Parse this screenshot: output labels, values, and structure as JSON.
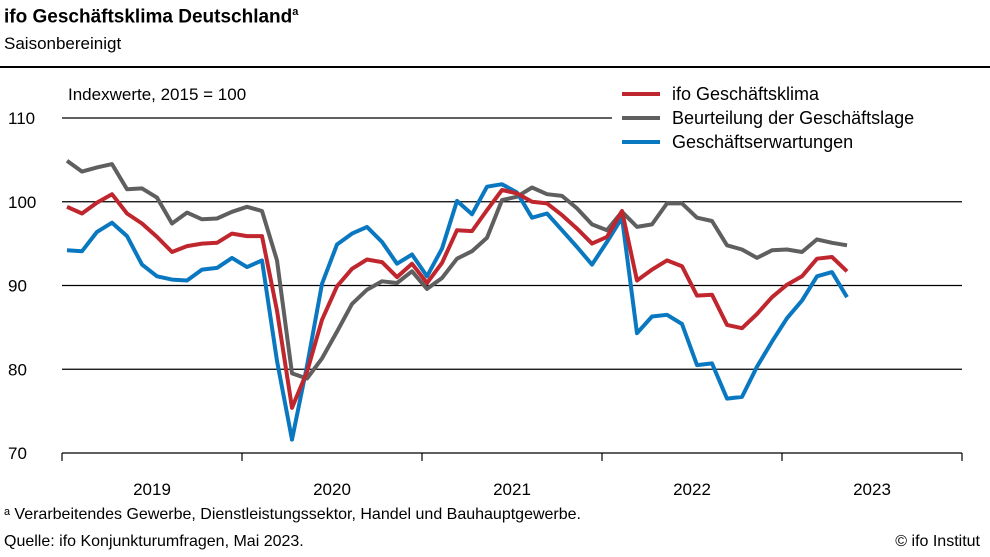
{
  "title": "ifo Geschäftsklima Deutschland",
  "title_marker": "a",
  "subtitle": "Saisonbereinigt",
  "footnote": "ᵃ Verarbeitendes  Gewerbe,  Dienstleistungssektor,  Handel und Bauhauptgewerbe.",
  "source": "Quelle:  ifo Konjunkturumfragen,  Mai 2023.",
  "copyright": "© ifo Institut",
  "chart_data": {
    "type": "line",
    "unit_label": "Indexwerte, 2015 = 100",
    "ylim": [
      70,
      110
    ],
    "yticks": [
      70,
      80,
      90,
      100,
      110
    ],
    "xtick_labels": [
      "2019",
      "2020",
      "2021",
      "2022",
      "2023"
    ],
    "x_start": "2019-01",
    "x_end": "2023-05",
    "frequency": "monthly",
    "grid": true,
    "legend": "top-right",
    "series": [
      {
        "name": "ifo Geschäftsklima",
        "color": "#c0262d",
        "values": [
          99.4,
          98.6,
          99.9,
          100.9,
          98.6,
          97.4,
          95.8,
          94.0,
          94.7,
          95.0,
          95.1,
          96.2,
          95.9,
          95.9,
          87.0,
          75.4,
          79.7,
          85.9,
          89.9,
          92.0,
          93.1,
          92.8,
          91.0,
          92.6,
          90.3,
          92.7,
          96.6,
          96.5,
          99.0,
          101.4,
          101.0,
          100.0,
          99.8,
          98.4,
          96.8,
          95.0,
          95.8,
          98.9,
          90.6,
          91.9,
          93.0,
          92.3,
          88.8,
          88.9,
          85.3,
          84.9,
          86.6,
          88.6,
          90.1,
          91.1,
          93.2,
          93.4,
          91.7
        ]
      },
      {
        "name": "Beurteilung der Geschäftslage",
        "color": "#5f5f5f",
        "values": [
          104.9,
          103.6,
          104.1,
          104.5,
          101.5,
          101.6,
          100.5,
          97.4,
          98.7,
          97.9,
          98.0,
          98.8,
          99.4,
          98.9,
          93.0,
          79.5,
          78.9,
          81.3,
          84.5,
          87.8,
          89.5,
          90.5,
          90.3,
          91.7,
          89.6,
          90.9,
          93.2,
          94.1,
          95.7,
          100.2,
          100.6,
          101.7,
          100.9,
          100.7,
          99.2,
          97.3,
          96.6,
          98.8,
          97.0,
          97.3,
          99.8,
          99.8,
          98.1,
          97.7,
          94.8,
          94.3,
          93.3,
          94.2,
          94.3,
          94.0,
          95.5,
          95.1,
          94.8
        ]
      },
      {
        "name": "Geschäftserwartungen",
        "color": "#0a78c0",
        "values": [
          94.2,
          94.1,
          96.4,
          97.5,
          95.9,
          92.5,
          91.1,
          90.7,
          90.6,
          91.9,
          92.1,
          93.3,
          92.2,
          93.0,
          81.0,
          71.6,
          80.4,
          90.2,
          94.9,
          96.2,
          97.0,
          95.2,
          92.6,
          93.7,
          91.1,
          94.4,
          100.1,
          98.5,
          101.8,
          102.1,
          101.1,
          98.1,
          98.6,
          96.6,
          94.6,
          92.5,
          95.2,
          98.1,
          84.3,
          86.3,
          86.5,
          85.4,
          80.5,
          80.7,
          76.5,
          76.7,
          80.3,
          83.3,
          86.1,
          88.2,
          91.1,
          91.6,
          88.6
        ]
      }
    ]
  }
}
